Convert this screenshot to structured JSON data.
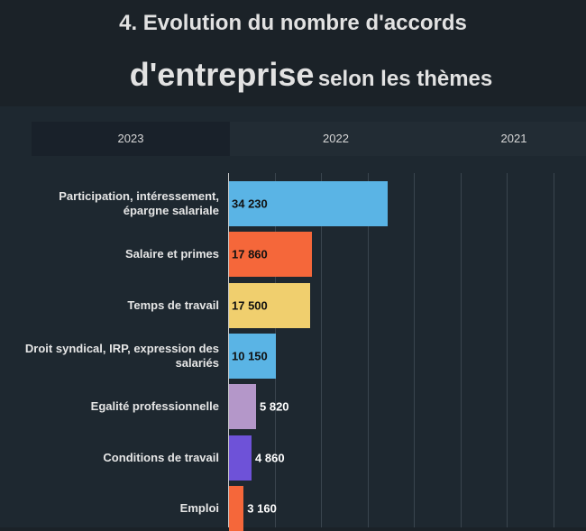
{
  "header": {
    "title_line1": "4. Evolution du nombre d'accords",
    "title_big": "d'entreprise",
    "title_rest": "selon les thèmes"
  },
  "tabs": [
    "2023",
    "2022",
    "2021"
  ],
  "active_tab": 0,
  "chart_data": {
    "type": "bar",
    "orientation": "horizontal",
    "categories": [
      "Participation, intéressement, épargne salariale",
      "Salaire et primes",
      "Temps de travail",
      "Droit syndical, IRP, expression des salariés",
      "Egalité professionnelle",
      "Conditions de travail",
      "Emploi"
    ],
    "values": [
      34230,
      17860,
      17500,
      10150,
      5820,
      4860,
      3160
    ],
    "value_labels": [
      "34 230",
      "17 860",
      "17 500",
      "10 150",
      "5 820",
      "4 860",
      "3 160"
    ],
    "colors": [
      "#5ab4e5",
      "#f5673a",
      "#f0cf6e",
      "#5ab4e5",
      "#b497c9",
      "#6e52d8",
      "#f5673a"
    ],
    "xlim": [
      0,
      77000
    ],
    "xticks": [
      0,
      10000,
      20000,
      30000,
      40000,
      50000,
      60000,
      70000
    ],
    "grid": true
  }
}
